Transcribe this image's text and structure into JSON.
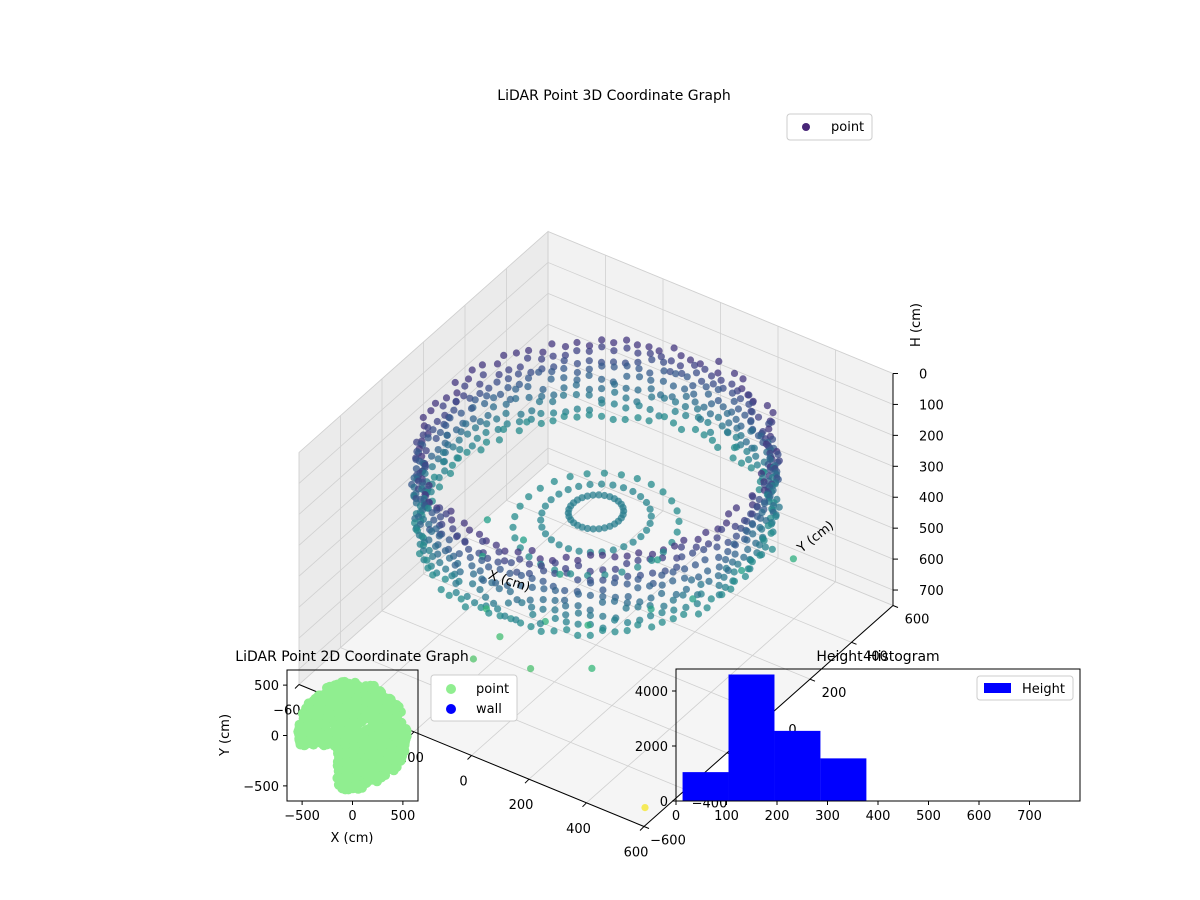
{
  "chart_data": [
    {
      "type": "scatter",
      "projection": "3d",
      "title": "LiDAR Point 3D Coordinate Graph",
      "xlabel": "X (cm)",
      "ylabel": "Y (cm)",
      "zlabel": "H (cm)",
      "xlim": [
        -600,
        600
      ],
      "ylim": [
        -600,
        600
      ],
      "zlim": [
        0,
        750
      ],
      "z_inverted": true,
      "x_ticks": [
        "−600",
        "−400",
        "−200",
        "0",
        "200",
        "400",
        "600"
      ],
      "y_ticks": [
        "−600",
        "−400",
        "−200",
        "0",
        "200",
        "400",
        "600"
      ],
      "z_ticks": [
        "0",
        "100",
        "200",
        "300",
        "400",
        "500",
        "600",
        "700"
      ],
      "grid": true,
      "legend": {
        "placement": "top-right",
        "entries": [
          {
            "label": "point",
            "color": "#482677"
          }
        ]
      },
      "colormap": "viridis",
      "series": [
        {
          "name": "point",
          "description_free_points": true,
          "wall_ring": {
            "radius": 520,
            "h_min": 120,
            "h_max": 380
          },
          "floor_points": [
            [
              -250,
              -200,
              440
            ],
            [
              -150,
              -320,
              500
            ],
            [
              -60,
              -380,
              520
            ],
            [
              40,
              -300,
              480
            ],
            [
              160,
              -260,
              470
            ],
            [
              300,
              -150,
              430
            ],
            [
              420,
              120,
              420
            ],
            [
              470,
              300,
              470
            ],
            [
              -80,
              -480,
              540
            ],
            [
              90,
              -440,
              530
            ],
            [
              260,
              -380,
              500
            ],
            [
              -320,
              -80,
              420
            ],
            [
              380,
              -60,
              420
            ],
            [
              200,
              20,
              410
            ],
            [
              -10,
              -160,
              430
            ],
            [
              -180,
              -100,
              420
            ],
            [
              560,
              -540,
              740
            ]
          ]
        }
      ]
    },
    {
      "type": "scatter",
      "title": "LiDAR Point 2D Coordinate Graph",
      "xlabel": "X (cm)",
      "ylabel": "Y (cm)",
      "xlim": [
        -650,
        650
      ],
      "ylim": [
        -650,
        650
      ],
      "x_ticks": [
        "−500",
        "0",
        "500"
      ],
      "y_ticks": [
        "500",
        "0",
        "−500"
      ],
      "legend": {
        "placement": "outside-right",
        "entries": [
          {
            "label": "point",
            "color": "#90ee90"
          },
          {
            "label": "wall",
            "color": "#0000ff"
          }
        ]
      },
      "series": [
        {
          "name": "point",
          "color": "#90ee90"
        },
        {
          "name": "wall",
          "color": "#0000ff",
          "values": []
        }
      ]
    },
    {
      "type": "bar",
      "subtype": "histogram",
      "title": "Height Histogram",
      "xlim": [
        0,
        800
      ],
      "ylim": [
        0,
        4800
      ],
      "x_ticks": [
        "0",
        "100",
        "200",
        "300",
        "400",
        "500",
        "600",
        "700"
      ],
      "y_ticks": [
        "0",
        "2000",
        "4000"
      ],
      "legend": {
        "placement": "top-right",
        "entries": [
          {
            "label": "Height",
            "color": "#0000ff"
          }
        ]
      },
      "bins": [
        {
          "from": 13,
          "to": 104,
          "count": 1050
        },
        {
          "from": 104,
          "to": 195,
          "count": 4600
        },
        {
          "from": 195,
          "to": 286,
          "count": 2550
        },
        {
          "from": 286,
          "to": 377,
          "count": 1550
        },
        {
          "from": 377,
          "to": 468,
          "count": 5
        },
        {
          "from": 468,
          "to": 559,
          "count": 5
        },
        {
          "from": 559,
          "to": 650,
          "count": 5
        },
        {
          "from": 650,
          "to": 741,
          "count": 5
        }
      ],
      "color": "#0000ff"
    }
  ]
}
